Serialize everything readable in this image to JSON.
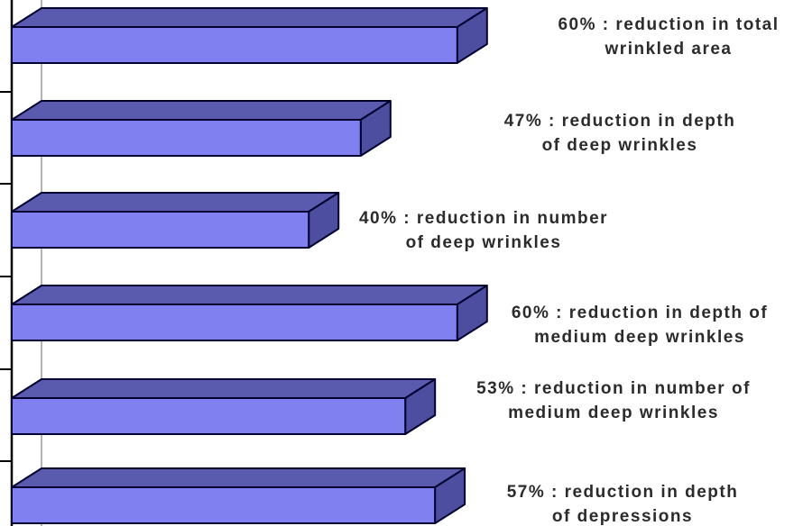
{
  "chart_data": {
    "type": "bar",
    "orientation": "horizontal",
    "style": "3d",
    "title": "",
    "unit": "%",
    "categories": [
      "reduction in total wrinkled area",
      "reduction in depth of deep wrinkles",
      "reduction in number of deep wrinkles",
      "reduction in depth of medium deep wrinkles",
      "reduction in number of medium deep wrinkles",
      "reduction in depth of depressions"
    ],
    "values": [
      60,
      47,
      40,
      60,
      53,
      57
    ],
    "annotations": [
      "60% : reduction in total\nwrinkled area",
      "47% : reduction in depth\nof deep wrinkles",
      "40% : reduction in number\nof deep wrinkles",
      "60% :  reduction in depth of\nmedium deep wrinkles",
      "53% :  reduction in number of\nmedium deep wrinkles",
      "57% : reduction in depth\nof depressions"
    ],
    "legend": "none",
    "grid": "single-vertical-zero-line",
    "x_axis_labels_visible": false,
    "y_axis_tick_count": 5
  },
  "colors": {
    "bar_front": "#8080f0",
    "bar_top": "#5a5aae",
    "bar_side": "#4e4ea0",
    "bar_outline": "#000030",
    "axis": "#000000",
    "gridline": "#b3b3b3",
    "label_text": "#2b2b2b",
    "background": "#ffffff"
  }
}
